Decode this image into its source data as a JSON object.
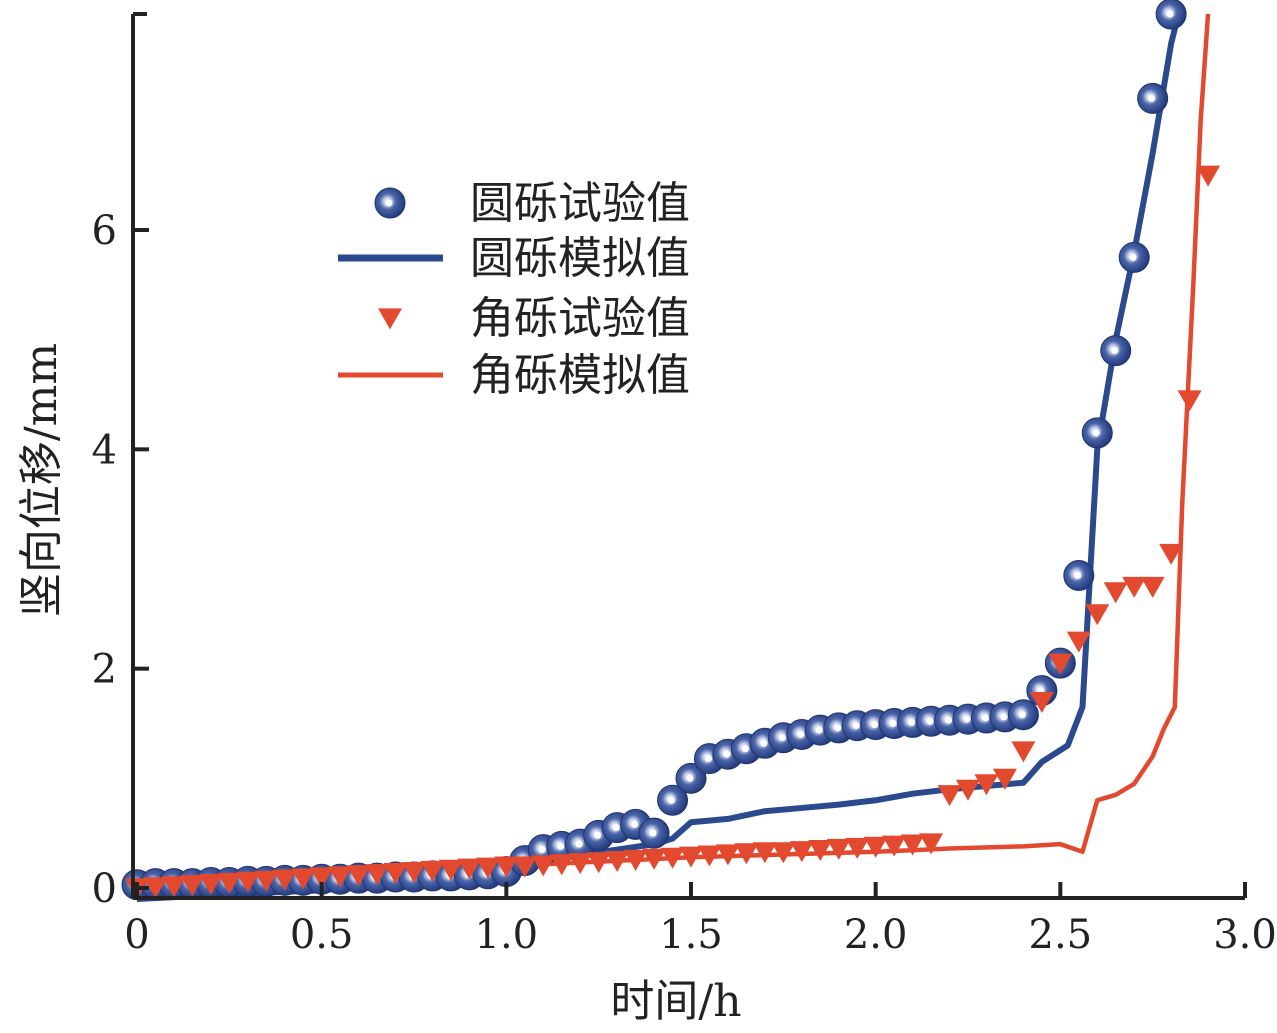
{
  "chart_data": {
    "type": "line",
    "title": "",
    "xlabel": "时间/h",
    "ylabel": "竖向位移/mm",
    "xlim": [
      0,
      3.0
    ],
    "ylim": [
      -0.1,
      8.0
    ],
    "xticks": [
      0,
      0.5,
      1.0,
      1.5,
      2.0,
      2.5,
      3.0
    ],
    "xtick_labels": [
      "0",
      "0.5",
      "1.0",
      "1.5",
      "2.0",
      "2.5",
      "3.0"
    ],
    "yticks": [
      0,
      2,
      4,
      6
    ],
    "ytick_labels": [
      "0",
      "2",
      "4",
      "6"
    ],
    "grid": false,
    "legend_position": "upper-left",
    "colors": {
      "round": "#2b4a8e",
      "angular": "#e2492f"
    },
    "series": [
      {
        "name": "圆砾试验值",
        "kind": "scatter",
        "marker": "circle",
        "color": "#2b4a8e",
        "x": [
          0.0,
          0.05,
          0.1,
          0.15,
          0.2,
          0.25,
          0.3,
          0.35,
          0.4,
          0.45,
          0.5,
          0.55,
          0.6,
          0.65,
          0.7,
          0.75,
          0.8,
          0.85,
          0.9,
          0.95,
          1.0,
          1.05,
          1.1,
          1.15,
          1.2,
          1.25,
          1.3,
          1.35,
          1.4,
          1.45,
          1.5,
          1.55,
          1.6,
          1.65,
          1.7,
          1.75,
          1.8,
          1.85,
          1.9,
          1.95,
          2.0,
          2.05,
          2.1,
          2.15,
          2.2,
          2.25,
          2.3,
          2.35,
          2.4,
          2.45,
          2.5,
          2.55,
          2.6,
          2.65,
          2.7,
          2.75,
          2.8
        ],
        "y": [
          0.03,
          0.04,
          0.04,
          0.04,
          0.05,
          0.05,
          0.06,
          0.06,
          0.07,
          0.07,
          0.08,
          0.08,
          0.09,
          0.09,
          0.1,
          0.1,
          0.11,
          0.11,
          0.12,
          0.13,
          0.15,
          0.25,
          0.35,
          0.38,
          0.4,
          0.48,
          0.55,
          0.58,
          0.5,
          0.8,
          1.0,
          1.18,
          1.22,
          1.27,
          1.32,
          1.37,
          1.4,
          1.44,
          1.46,
          1.48,
          1.49,
          1.5,
          1.51,
          1.52,
          1.53,
          1.54,
          1.55,
          1.56,
          1.58,
          1.8,
          2.05,
          2.85,
          4.15,
          4.9,
          5.75,
          7.2,
          8.0
        ]
      },
      {
        "name": "圆砾模拟值",
        "kind": "line",
        "color": "#2b4a8e",
        "x": [
          0.0,
          0.3,
          0.5,
          0.8,
          1.0,
          1.05,
          1.2,
          1.3,
          1.4,
          1.45,
          1.5,
          1.6,
          1.7,
          1.8,
          1.9,
          2.0,
          2.1,
          2.2,
          2.3,
          2.4,
          2.45,
          2.52,
          2.56,
          2.6,
          2.65,
          2.7,
          2.75,
          2.8,
          2.82
        ],
        "y": [
          -0.1,
          -0.05,
          -0.02,
          0.05,
          0.12,
          0.2,
          0.3,
          0.35,
          0.4,
          0.45,
          0.6,
          0.63,
          0.7,
          0.73,
          0.76,
          0.8,
          0.86,
          0.9,
          0.93,
          0.96,
          1.15,
          1.3,
          1.65,
          4.0,
          5.0,
          5.8,
          6.7,
          7.7,
          8.0
        ]
      },
      {
        "name": "角砾试验值",
        "kind": "scatter",
        "marker": "triangle-down",
        "color": "#e2492f",
        "x": [
          0.0,
          0.05,
          0.1,
          0.15,
          0.2,
          0.25,
          0.3,
          0.35,
          0.4,
          0.45,
          0.5,
          0.55,
          0.6,
          0.65,
          0.7,
          0.75,
          0.8,
          0.85,
          0.9,
          0.95,
          1.0,
          1.05,
          1.1,
          1.15,
          1.2,
          1.25,
          1.3,
          1.35,
          1.4,
          1.45,
          1.5,
          1.55,
          1.6,
          1.65,
          1.7,
          1.75,
          1.8,
          1.85,
          1.9,
          1.95,
          2.0,
          2.05,
          2.1,
          2.15,
          2.2,
          2.25,
          2.3,
          2.35,
          2.4,
          2.45,
          2.5,
          2.55,
          2.6,
          2.65,
          2.7,
          2.75,
          2.8,
          2.85,
          2.9
        ],
        "y": [
          0.0,
          0.01,
          0.02,
          0.03,
          0.04,
          0.05,
          0.06,
          0.07,
          0.08,
          0.09,
          0.1,
          0.11,
          0.12,
          0.13,
          0.14,
          0.15,
          0.16,
          0.17,
          0.18,
          0.19,
          0.2,
          0.2,
          0.21,
          0.22,
          0.23,
          0.24,
          0.25,
          0.26,
          0.27,
          0.28,
          0.29,
          0.3,
          0.31,
          0.32,
          0.33,
          0.33,
          0.34,
          0.35,
          0.36,
          0.37,
          0.38,
          0.39,
          0.4,
          0.41,
          0.85,
          0.9,
          0.95,
          1.0,
          1.25,
          1.7,
          2.05,
          2.25,
          2.5,
          2.7,
          2.75,
          2.75,
          3.05,
          4.45,
          6.5
        ]
      },
      {
        "name": "角砾模拟值",
        "kind": "line",
        "color": "#e2492f",
        "x": [
          0.0,
          0.5,
          1.0,
          1.5,
          2.0,
          2.2,
          2.4,
          2.5,
          2.56,
          2.6,
          2.65,
          2.7,
          2.75,
          2.78,
          2.81,
          2.83,
          2.86,
          2.88,
          2.9
        ],
        "y": [
          0.05,
          0.12,
          0.2,
          0.28,
          0.33,
          0.36,
          0.38,
          0.4,
          0.33,
          0.8,
          0.85,
          0.95,
          1.2,
          1.45,
          1.65,
          3.5,
          5.5,
          7.0,
          8.0
        ]
      }
    ]
  }
}
